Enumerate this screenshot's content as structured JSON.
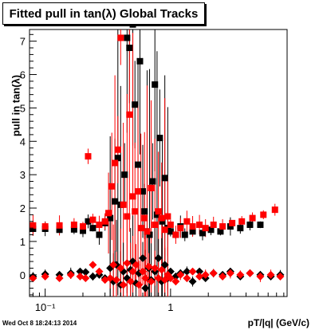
{
  "title": "Fitted pull in tan(λ)  Global Tracks",
  "stamp": "Wed Oct  8 18:24:13 2014",
  "chart_data": {
    "type": "scatter",
    "title": "Fitted pull in tan(λ)  Global Tracks",
    "xlabel": "pT/|q| (GeV/c)",
    "ylabel": "pull in tan(λ)",
    "xscale": "log",
    "xlim": [
      0.075,
      8.5
    ],
    "ylim": [
      -0.65,
      7.35
    ],
    "x_ticks": [
      {
        "v": 0.1,
        "label": "10⁻¹"
      },
      {
        "v": 1,
        "label": "1"
      }
    ],
    "y_ticks": [
      0,
      1,
      2,
      3,
      4,
      5,
      6,
      7
    ],
    "series": [
      {
        "color": "#000000",
        "marker": "square",
        "role": "sigma",
        "points": [
          [
            0.08,
            1.38
          ],
          [
            0.1,
            1.38
          ],
          [
            0.13,
            1.35
          ],
          [
            0.17,
            1.36
          ],
          [
            0.2,
            1.32
          ],
          [
            0.22,
            1.6
          ],
          [
            0.24,
            1.4
          ],
          [
            0.27,
            1.2
          ],
          [
            0.3,
            1.55
          ],
          [
            0.33,
            1.7
          ],
          [
            0.36,
            2.2
          ],
          [
            0.38,
            3.5
          ],
          [
            0.4,
            2.1
          ],
          [
            0.43,
            3.0
          ],
          [
            0.45,
            7.1
          ],
          [
            0.47,
            6.8
          ],
          [
            0.5,
            7.5
          ],
          [
            0.52,
            5.1
          ],
          [
            0.55,
            3.3
          ],
          [
            0.57,
            6.4
          ],
          [
            0.6,
            2.5
          ],
          [
            0.62,
            1.9
          ],
          [
            0.65,
            1.3
          ],
          [
            0.68,
            1.2
          ],
          [
            0.72,
            2.8
          ],
          [
            0.75,
            5.7
          ],
          [
            0.78,
            1.8
          ],
          [
            0.82,
            4.1
          ],
          [
            0.86,
            1.6
          ],
          [
            0.9,
            2.9
          ],
          [
            0.95,
            1.4
          ],
          [
            1.0,
            1.3
          ],
          [
            1.1,
            1.2
          ],
          [
            1.2,
            1.45
          ],
          [
            1.3,
            1.2
          ],
          [
            1.5,
            1.3
          ],
          [
            1.8,
            1.25
          ],
          [
            2.1,
            1.35
          ],
          [
            2.5,
            1.3
          ],
          [
            3.0,
            1.45
          ],
          [
            3.6,
            1.4
          ],
          [
            4.3,
            1.5
          ],
          [
            5.2,
            1.5
          ]
        ]
      },
      {
        "color": "#ff0000",
        "marker": "square",
        "role": "sigma",
        "points": [
          [
            0.08,
            1.48
          ],
          [
            0.1,
            1.45
          ],
          [
            0.13,
            1.48
          ],
          [
            0.17,
            1.5
          ],
          [
            0.2,
            1.45
          ],
          [
            0.22,
            3.55
          ],
          [
            0.24,
            1.65
          ],
          [
            0.27,
            1.5
          ],
          [
            0.3,
            1.6
          ],
          [
            0.32,
            1.85
          ],
          [
            0.34,
            2.65
          ],
          [
            0.36,
            3.35
          ],
          [
            0.38,
            3.75
          ],
          [
            0.4,
            7.1
          ],
          [
            0.42,
            2.1
          ],
          [
            0.45,
            1.75
          ],
          [
            0.47,
            4.8
          ],
          [
            0.5,
            2.35
          ],
          [
            0.52,
            1.9
          ],
          [
            0.55,
            2.5
          ],
          [
            0.58,
            1.4
          ],
          [
            0.62,
            1.7
          ],
          [
            0.65,
            1.3
          ],
          [
            0.7,
            2.6
          ],
          [
            0.75,
            1.5
          ],
          [
            0.8,
            1.9
          ],
          [
            0.85,
            1.7
          ],
          [
            0.9,
            1.35
          ],
          [
            0.95,
            1.75
          ],
          [
            1.0,
            1.5
          ],
          [
            1.1,
            1.2
          ],
          [
            1.2,
            1.4
          ],
          [
            1.35,
            1.6
          ],
          [
            1.5,
            1.45
          ],
          [
            1.7,
            1.5
          ],
          [
            1.9,
            1.4
          ],
          [
            2.2,
            1.5
          ],
          [
            2.6,
            1.45
          ],
          [
            3.1,
            1.55
          ],
          [
            3.7,
            1.6
          ],
          [
            4.5,
            1.7
          ],
          [
            5.5,
            1.8
          ],
          [
            6.8,
            1.95
          ]
        ]
      },
      {
        "color": "#000000",
        "marker": "diamond",
        "role": "mean",
        "points": [
          [
            0.08,
            -0.05
          ],
          [
            0.1,
            0.02
          ],
          [
            0.13,
            0.0
          ],
          [
            0.16,
            0.05
          ],
          [
            0.19,
            0.1
          ],
          [
            0.21,
            0.08
          ],
          [
            0.24,
            -0.05
          ],
          [
            0.27,
            0.0
          ],
          [
            0.3,
            -0.1
          ],
          [
            0.33,
            0.2
          ],
          [
            0.35,
            -0.2
          ],
          [
            0.37,
            0.3
          ],
          [
            0.4,
            -0.3
          ],
          [
            0.42,
            0.1
          ],
          [
            0.45,
            -0.1
          ],
          [
            0.48,
            0.15
          ],
          [
            0.5,
            0.4
          ],
          [
            0.53,
            -0.25
          ],
          [
            0.56,
            0.05
          ],
          [
            0.6,
            0.5
          ],
          [
            0.63,
            -0.4
          ],
          [
            0.67,
            0.2
          ],
          [
            0.7,
            -0.15
          ],
          [
            0.75,
            0.1
          ],
          [
            0.8,
            0.5
          ],
          [
            0.85,
            -0.2
          ],
          [
            0.9,
            0.3
          ],
          [
            0.95,
            -0.1
          ],
          [
            1.0,
            0.1
          ],
          [
            1.1,
            -0.05
          ],
          [
            1.2,
            0.05
          ],
          [
            1.35,
            0.1
          ],
          [
            1.5,
            -0.2
          ],
          [
            1.7,
            0.1
          ],
          [
            1.9,
            -0.1
          ],
          [
            2.2,
            0.05
          ],
          [
            2.6,
            0.0
          ],
          [
            3.0,
            0.1
          ],
          [
            3.6,
            -0.05
          ],
          [
            4.3,
            0.05
          ],
          [
            5.2,
            0.0
          ],
          [
            6.3,
            -0.05
          ],
          [
            7.5,
            0.0
          ]
        ]
      },
      {
        "color": "#ff0000",
        "marker": "diamond",
        "role": "mean",
        "points": [
          [
            0.08,
            -0.1
          ],
          [
            0.1,
            -0.05
          ],
          [
            0.13,
            -0.1
          ],
          [
            0.16,
            0.0
          ],
          [
            0.19,
            -0.05
          ],
          [
            0.21,
            -0.1
          ],
          [
            0.24,
            0.3
          ],
          [
            0.27,
            0.1
          ],
          [
            0.3,
            -0.15
          ],
          [
            0.33,
            -0.1
          ],
          [
            0.35,
            0.3
          ],
          [
            0.37,
            -0.15
          ],
          [
            0.4,
            0.2
          ],
          [
            0.42,
            -0.3
          ],
          [
            0.45,
            0.35
          ],
          [
            0.48,
            -0.2
          ],
          [
            0.5,
            0.1
          ],
          [
            0.53,
            0.3
          ],
          [
            0.56,
            -0.3
          ],
          [
            0.6,
            0.1
          ],
          [
            0.63,
            -0.1
          ],
          [
            0.67,
            0.25
          ],
          [
            0.7,
            -0.2
          ],
          [
            0.75,
            0.2
          ],
          [
            0.8,
            -0.1
          ],
          [
            0.85,
            0.15
          ],
          [
            0.9,
            -0.15
          ],
          [
            0.95,
            0.0
          ],
          [
            1.0,
            -0.1
          ],
          [
            1.1,
            -0.2
          ],
          [
            1.2,
            0.0
          ],
          [
            1.35,
            -0.1
          ],
          [
            1.5,
            0.1
          ],
          [
            1.7,
            -0.05
          ],
          [
            1.9,
            0.0
          ],
          [
            2.2,
            0.05
          ],
          [
            2.6,
            -0.05
          ],
          [
            3.0,
            0.05
          ],
          [
            3.6,
            0.0
          ],
          [
            4.3,
            0.05
          ],
          [
            5.2,
            -0.05
          ],
          [
            6.3,
            0.0
          ],
          [
            7.5,
            -0.05
          ]
        ]
      }
    ]
  }
}
